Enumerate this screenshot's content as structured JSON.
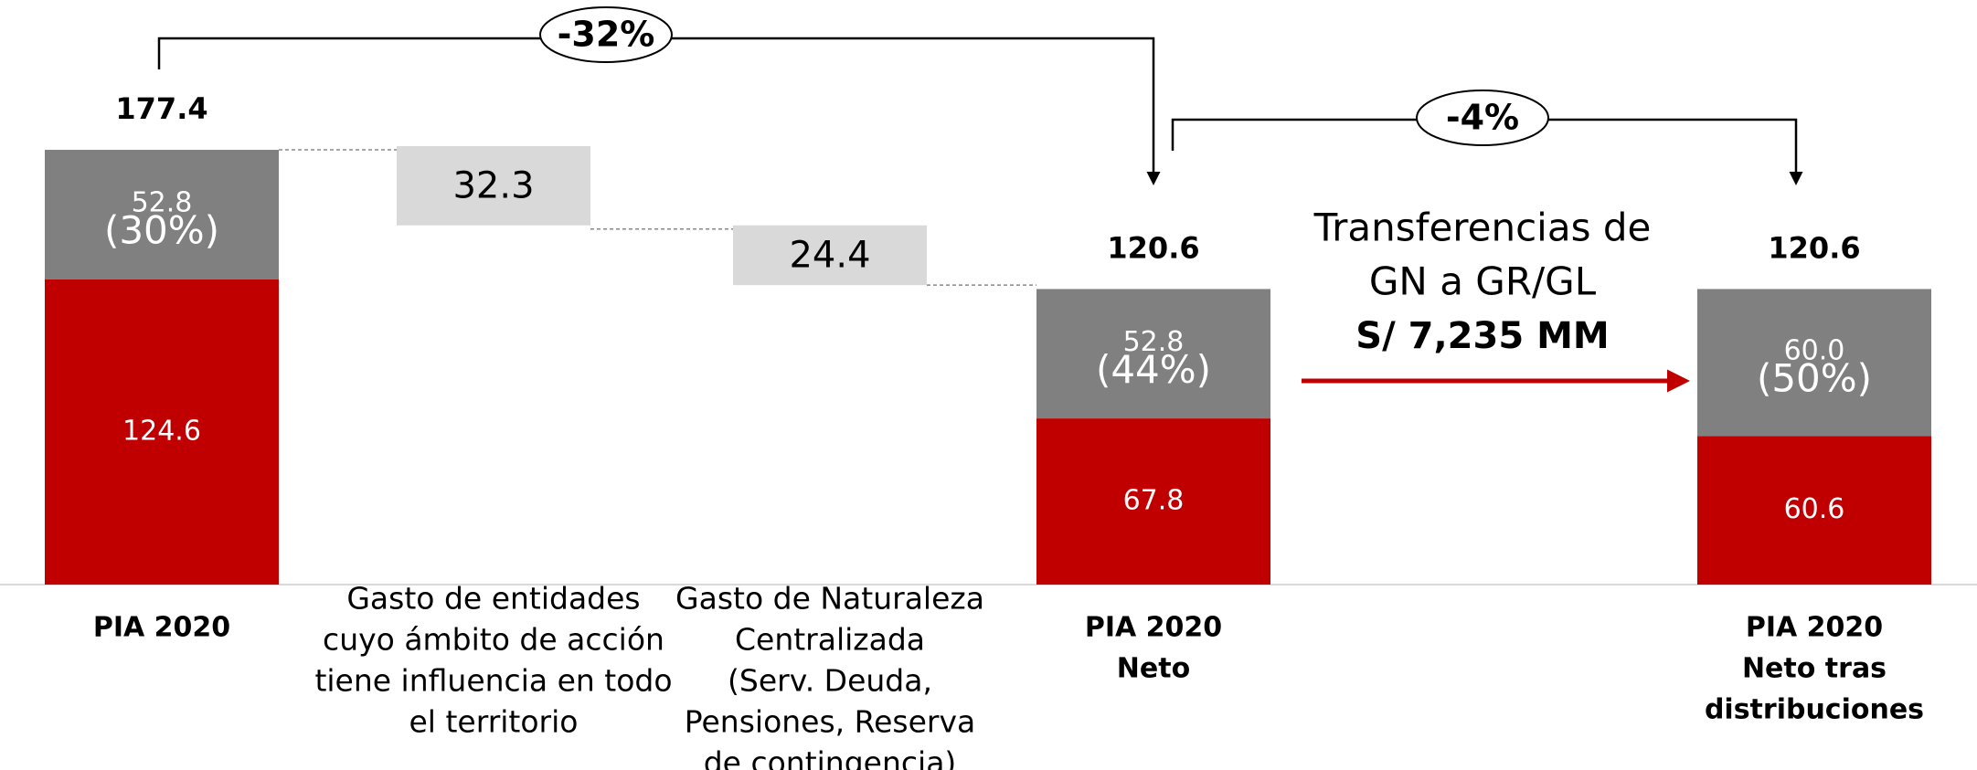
{
  "chart_data": {
    "type": "waterfall",
    "categories": [
      [
        "PIA 2020"
      ],
      [
        "Gasto de entidades",
        "cuyo ámbito de acción",
        "tiene influencia en todo",
        "el territorio"
      ],
      [
        "Gasto de Naturaleza",
        "Centralizada",
        "(Serv. Deuda,",
        "Pensiones, Reserva",
        "de contingencia)"
      ],
      [
        "PIA 2020",
        "Neto"
      ],
      [
        "PIA 2020",
        "Neto tras",
        "distribuciones"
      ]
    ],
    "series": [
      {
        "color": "#c00000",
        "values": [
          124.6,
          null,
          null,
          67.8,
          60.6
        ]
      },
      {
        "color": "#808080",
        "values": [
          52.8,
          null,
          null,
          52.8,
          60.0
        ],
        "value_labels": [
          "52.8",
          null,
          null,
          "52.8",
          "60.0"
        ]
      }
    ],
    "share_labels": [
      "(30%)",
      null,
      null,
      "(44%)",
      "(50%)"
    ],
    "totals": [
      177.4,
      null,
      null,
      120.6,
      120.6
    ],
    "decrements": [
      null,
      32.3,
      24.4,
      null,
      null
    ],
    "decrement_color": "#d9d9d9",
    "changes": [
      "-32%",
      "-4%"
    ],
    "transfer_note": [
      "Transferencias de",
      "GN a GR/GL",
      "S/ 7,235 MM"
    ],
    "transfer_color": "#c00000"
  }
}
